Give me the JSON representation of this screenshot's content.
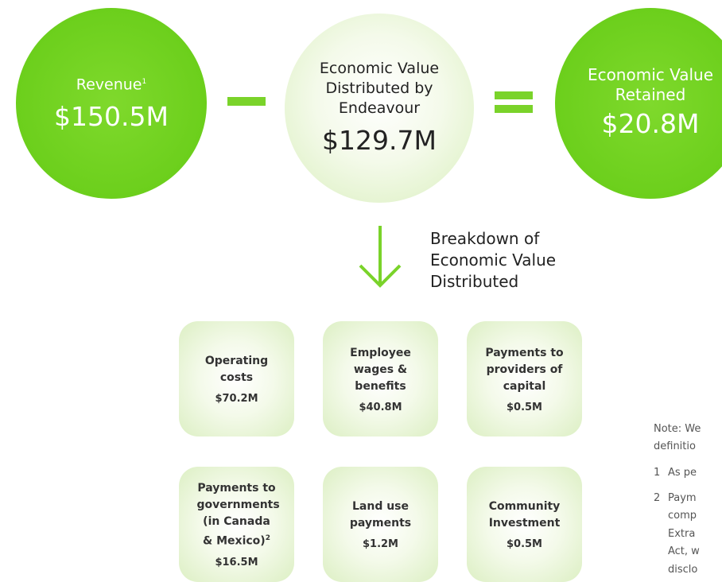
{
  "circles": [
    {
      "label": "Revenue",
      "note": "1",
      "value": "$150.5M"
    },
    {
      "label": "Economic Value Distributed by Endeavour",
      "value": "$129.7M"
    },
    {
      "label": "Economic Value Retained",
      "value": "$20.8M"
    }
  ],
  "breakdown": {
    "title": "Breakdown of Economic Value Distributed",
    "items": [
      {
        "label": "Operating costs",
        "value": "$70.2M"
      },
      {
        "label": "Employee wages & benefits",
        "value": "$40.8M"
      },
      {
        "label": "Payments to providers of capital",
        "value": "$0.5M"
      },
      {
        "label": "Payments to governments (in Canada & Mexico)",
        "note": "2",
        "value": "$16.5M"
      },
      {
        "label": "Land use payments",
        "value": "$1.2M"
      },
      {
        "label": "Community Investment",
        "value": "$0.5M"
      }
    ]
  },
  "notes": {
    "lines": [
      "Note: We",
      "definitio"
    ],
    "items": [
      {
        "num": "1",
        "lines": [
          "As pe"
        ]
      },
      {
        "num": "2",
        "lines": [
          "Paym",
          "comp",
          "Extra",
          "Act, w",
          "disclo"
        ]
      }
    ]
  }
}
